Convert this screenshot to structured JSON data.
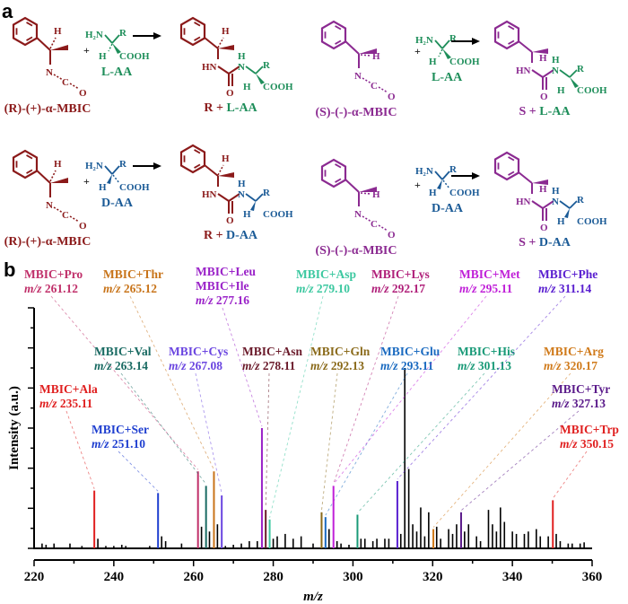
{
  "panel_a": {
    "label": "a",
    "colors": {
      "R": "#8b1a1a",
      "S": "#8b2a91",
      "L": "#1e8e5a",
      "D": "#1a5a96"
    },
    "reactions": [
      {
        "reagent": "(R)-(+)-α-MBIC",
        "config": "R",
        "amino_acid": "L-AA",
        "product": "R + L-AA",
        "product_parts": [
          "R",
          " + ",
          "L-AA"
        ]
      },
      {
        "reagent": "(S)-(-)-α-MBIC",
        "config": "S",
        "amino_acid": "L-AA",
        "product": "S + L-AA",
        "product_parts": [
          "S",
          " + ",
          "L-AA"
        ]
      },
      {
        "reagent": "(R)-(+)-α-MBIC",
        "config": "R",
        "amino_acid": "D-AA",
        "product": "R + D-AA",
        "product_parts": [
          "R",
          " + ",
          "D-AA"
        ]
      },
      {
        "reagent": "(S)-(-)-α-MBIC",
        "config": "S",
        "amino_acid": "D-AA",
        "product": "S + D-AA",
        "product_parts": [
          "S",
          " + ",
          "D-AA"
        ]
      }
    ],
    "atoms": {
      "H": "H",
      "N": "N",
      "C": "C",
      "O": "O",
      "R": "R",
      "H2N": "H₂N",
      "COOH": "COOH",
      "HN": "HN",
      "plus": "+"
    }
  },
  "panel_b": {
    "label": "b"
  },
  "chart_data": {
    "type": "bar",
    "title": "",
    "xlabel": "m/z",
    "ylabel": "Intensity (a.u.)",
    "xlim": [
      220,
      360
    ],
    "ylim": [
      0,
      1
    ],
    "xticks": [
      220,
      240,
      260,
      280,
      300,
      320,
      340,
      360
    ],
    "y_tick_labels": [],
    "grid": false,
    "legend": "none",
    "annotated_peaks": [
      {
        "name": "MBIC+Ala",
        "mz": 235.11,
        "mz_label": "235.11",
        "intensity": 0.24,
        "color": "#e02020"
      },
      {
        "name": "MBIC+Ser",
        "mz": 251.1,
        "mz_label": "251.10",
        "intensity": 0.23,
        "color": "#1f3fd0"
      },
      {
        "name": "MBIC+Pro",
        "mz": 261.12,
        "mz_label": "261.12",
        "intensity": 0.32,
        "color": "#c0306a"
      },
      {
        "name": "MBIC+Val",
        "mz": 263.14,
        "mz_label": "263.14",
        "intensity": 0.26,
        "color": "#1a6b63"
      },
      {
        "name": "MBIC+Thr",
        "mz": 265.12,
        "mz_label": "265.12",
        "intensity": 0.32,
        "color": "#c8741a"
      },
      {
        "name": "MBIC+Cys",
        "mz": 267.08,
        "mz_label": "267.08",
        "intensity": 0.22,
        "color": "#6a45e0"
      },
      {
        "name": "MBIC+Leu",
        "name2": "MBIC+Ile",
        "mz": 277.16,
        "mz_label": "277.16",
        "intensity": 0.5,
        "color": "#9a22c8"
      },
      {
        "name": "MBIC+Asn",
        "mz": 278.11,
        "mz_label": "278.11",
        "intensity": 0.16,
        "color": "#6a1a2a"
      },
      {
        "name": "MBIC+Asp",
        "mz": 279.1,
        "mz_label": "279.10",
        "intensity": 0.12,
        "color": "#3cc8a0"
      },
      {
        "name": "MBIC+Gln",
        "mz": 292.13,
        "mz_label": "292.13",
        "intensity": 0.15,
        "color": "#8a6a1a"
      },
      {
        "name": "MBIC+Glu",
        "mz": 293.11,
        "mz_label": "293.11",
        "intensity": 0.13,
        "color": "#1a6ac0"
      },
      {
        "name": "MBIC+Lys",
        "mz": 292.17,
        "mz_label": "292.17",
        "intensity": 0.0,
        "color": "#b0207a"
      },
      {
        "name": "MBIC+Met",
        "mz": 295.11,
        "mz_label": "295.11",
        "intensity": 0.26,
        "color": "#c020d8"
      },
      {
        "name": "MBIC+His",
        "mz": 301.13,
        "mz_label": "301.13",
        "intensity": 0.14,
        "color": "#1a9a78"
      },
      {
        "name": "MBIC+Phe",
        "mz": 311.14,
        "mz_label": "311.14",
        "intensity": 0.28,
        "color": "#5a20d0"
      },
      {
        "name": "MBIC+Arg",
        "mz": 320.17,
        "mz_label": "320.17",
        "intensity": 0.08,
        "color": "#d07a1a"
      },
      {
        "name": "MBIC+Tyr",
        "mz": 327.13,
        "mz_label": "327.13",
        "intensity": 0.15,
        "color": "#5a1a8a"
      },
      {
        "name": "MBIC+Trp",
        "mz": 350.15,
        "mz_label": "350.15",
        "intensity": 0.2,
        "color": "#e02020"
      }
    ],
    "background_peaks": {
      "x": [
        222,
        223,
        225,
        229,
        232,
        236,
        238,
        240,
        242,
        243,
        249,
        252,
        253,
        257,
        262,
        264,
        266,
        268,
        270,
        272,
        274,
        276,
        280,
        281,
        283,
        285,
        287,
        290,
        294,
        296,
        297,
        299,
        302,
        303,
        305,
        306,
        308,
        309,
        312,
        313,
        314,
        315,
        316,
        317,
        318,
        319,
        321,
        322,
        324,
        325,
        326,
        328,
        329,
        331,
        332,
        334,
        335,
        336,
        337,
        338,
        340,
        341,
        343,
        344,
        346,
        347,
        349,
        351,
        352,
        354,
        355,
        357,
        358
      ],
      "intensity": [
        0.02,
        0.015,
        0.02,
        0.02,
        0.01,
        0.04,
        0.01,
        0.01,
        0.015,
        0.01,
        0.01,
        0.05,
        0.03,
        0.02,
        0.09,
        0.07,
        0.1,
        0.01,
        0.015,
        0.02,
        0.03,
        0.03,
        0.04,
        0.05,
        0.06,
        0.04,
        0.05,
        0.02,
        0.08,
        0.03,
        0.02,
        0.015,
        0.04,
        0.04,
        0.03,
        0.04,
        0.04,
        0.04,
        0.06,
        0.75,
        0.33,
        0.1,
        0.07,
        0.17,
        0.05,
        0.15,
        0.09,
        0.04,
        0.08,
        0.06,
        0.1,
        0.07,
        0.1,
        0.05,
        0.03,
        0.16,
        0.1,
        0.07,
        0.17,
        0.11,
        0.07,
        0.06,
        0.06,
        0.07,
        0.08,
        0.05,
        0.05,
        0.06,
        0.03,
        0.02,
        0.02,
        0.02,
        0.025
      ]
    }
  }
}
